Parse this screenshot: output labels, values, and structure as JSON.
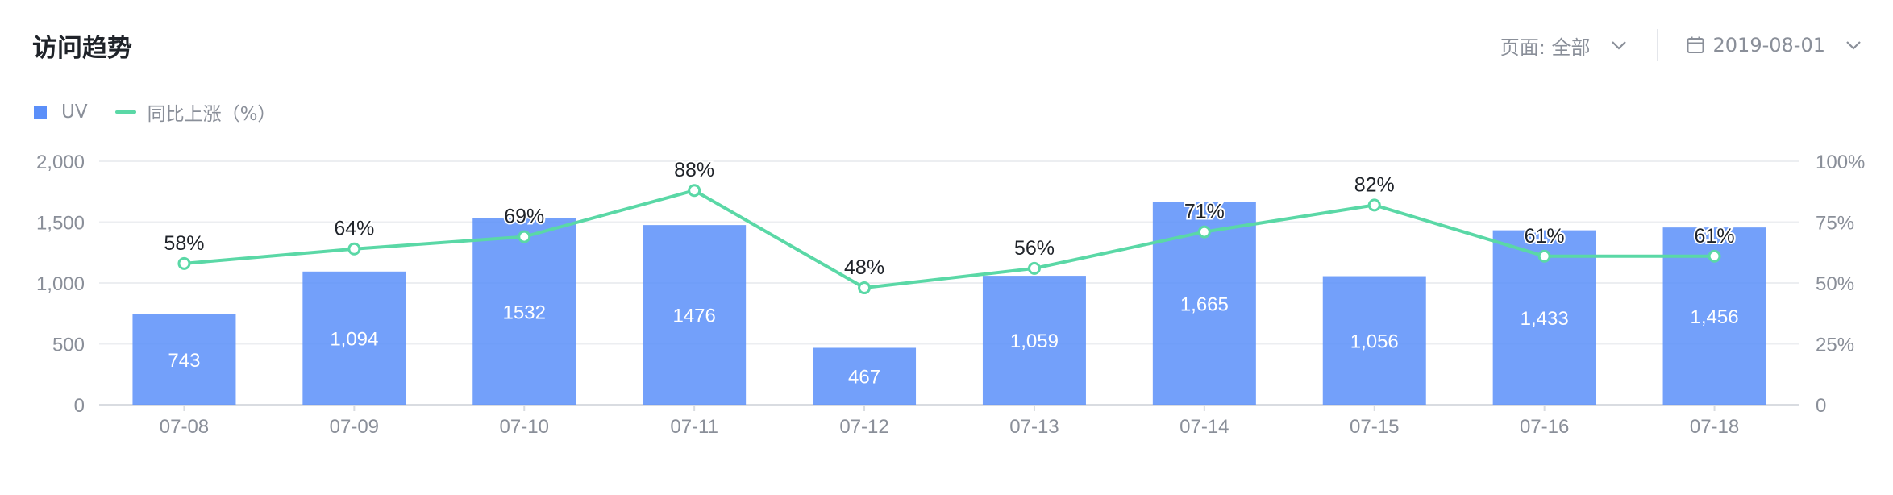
{
  "header": {
    "title": "访问趋势",
    "page_filter_label": "页面: 全部",
    "date_filter_label": "2019-08-01"
  },
  "icons": {
    "page_dropdown": "chevron-down-icon",
    "date_dropdown": "chevron-down-icon",
    "date": "calendar-icon"
  },
  "chart_data": {
    "type": "bar",
    "categories": [
      "07-08",
      "07-09",
      "07-10",
      "07-11",
      "07-12",
      "07-13",
      "07-14",
      "07-15",
      "07-16",
      "07-18"
    ],
    "series": [
      {
        "name": "UV",
        "type": "bar",
        "axis": "left",
        "color": "#5b8ff9",
        "values": [
          743,
          1094,
          1532,
          1476,
          467,
          1059,
          1665,
          1056,
          1433,
          1456
        ],
        "labels": [
          "743",
          "1,094",
          "1532",
          "1476",
          "467",
          "1,059",
          "1,665",
          "1,056",
          "1,433",
          "1,456"
        ]
      },
      {
        "name": "同比上涨（%）",
        "type": "line",
        "axis": "right",
        "color": "#5ad8a6",
        "values": [
          58,
          64,
          69,
          88,
          48,
          56,
          71,
          82,
          61,
          61
        ],
        "labels": [
          "58%",
          "64%",
          "69%",
          "88%",
          "48%",
          "56%",
          "71%",
          "82%",
          "61%",
          "61%"
        ]
      }
    ],
    "y_left": {
      "ticks": [
        "0",
        "500",
        "1,000",
        "1,500",
        "2,000"
      ]
    },
    "y_right": {
      "ticks": [
        "0",
        "25%",
        "50%",
        "75%",
        "100%"
      ]
    },
    "legend_position": "top-left",
    "grid": true
  }
}
